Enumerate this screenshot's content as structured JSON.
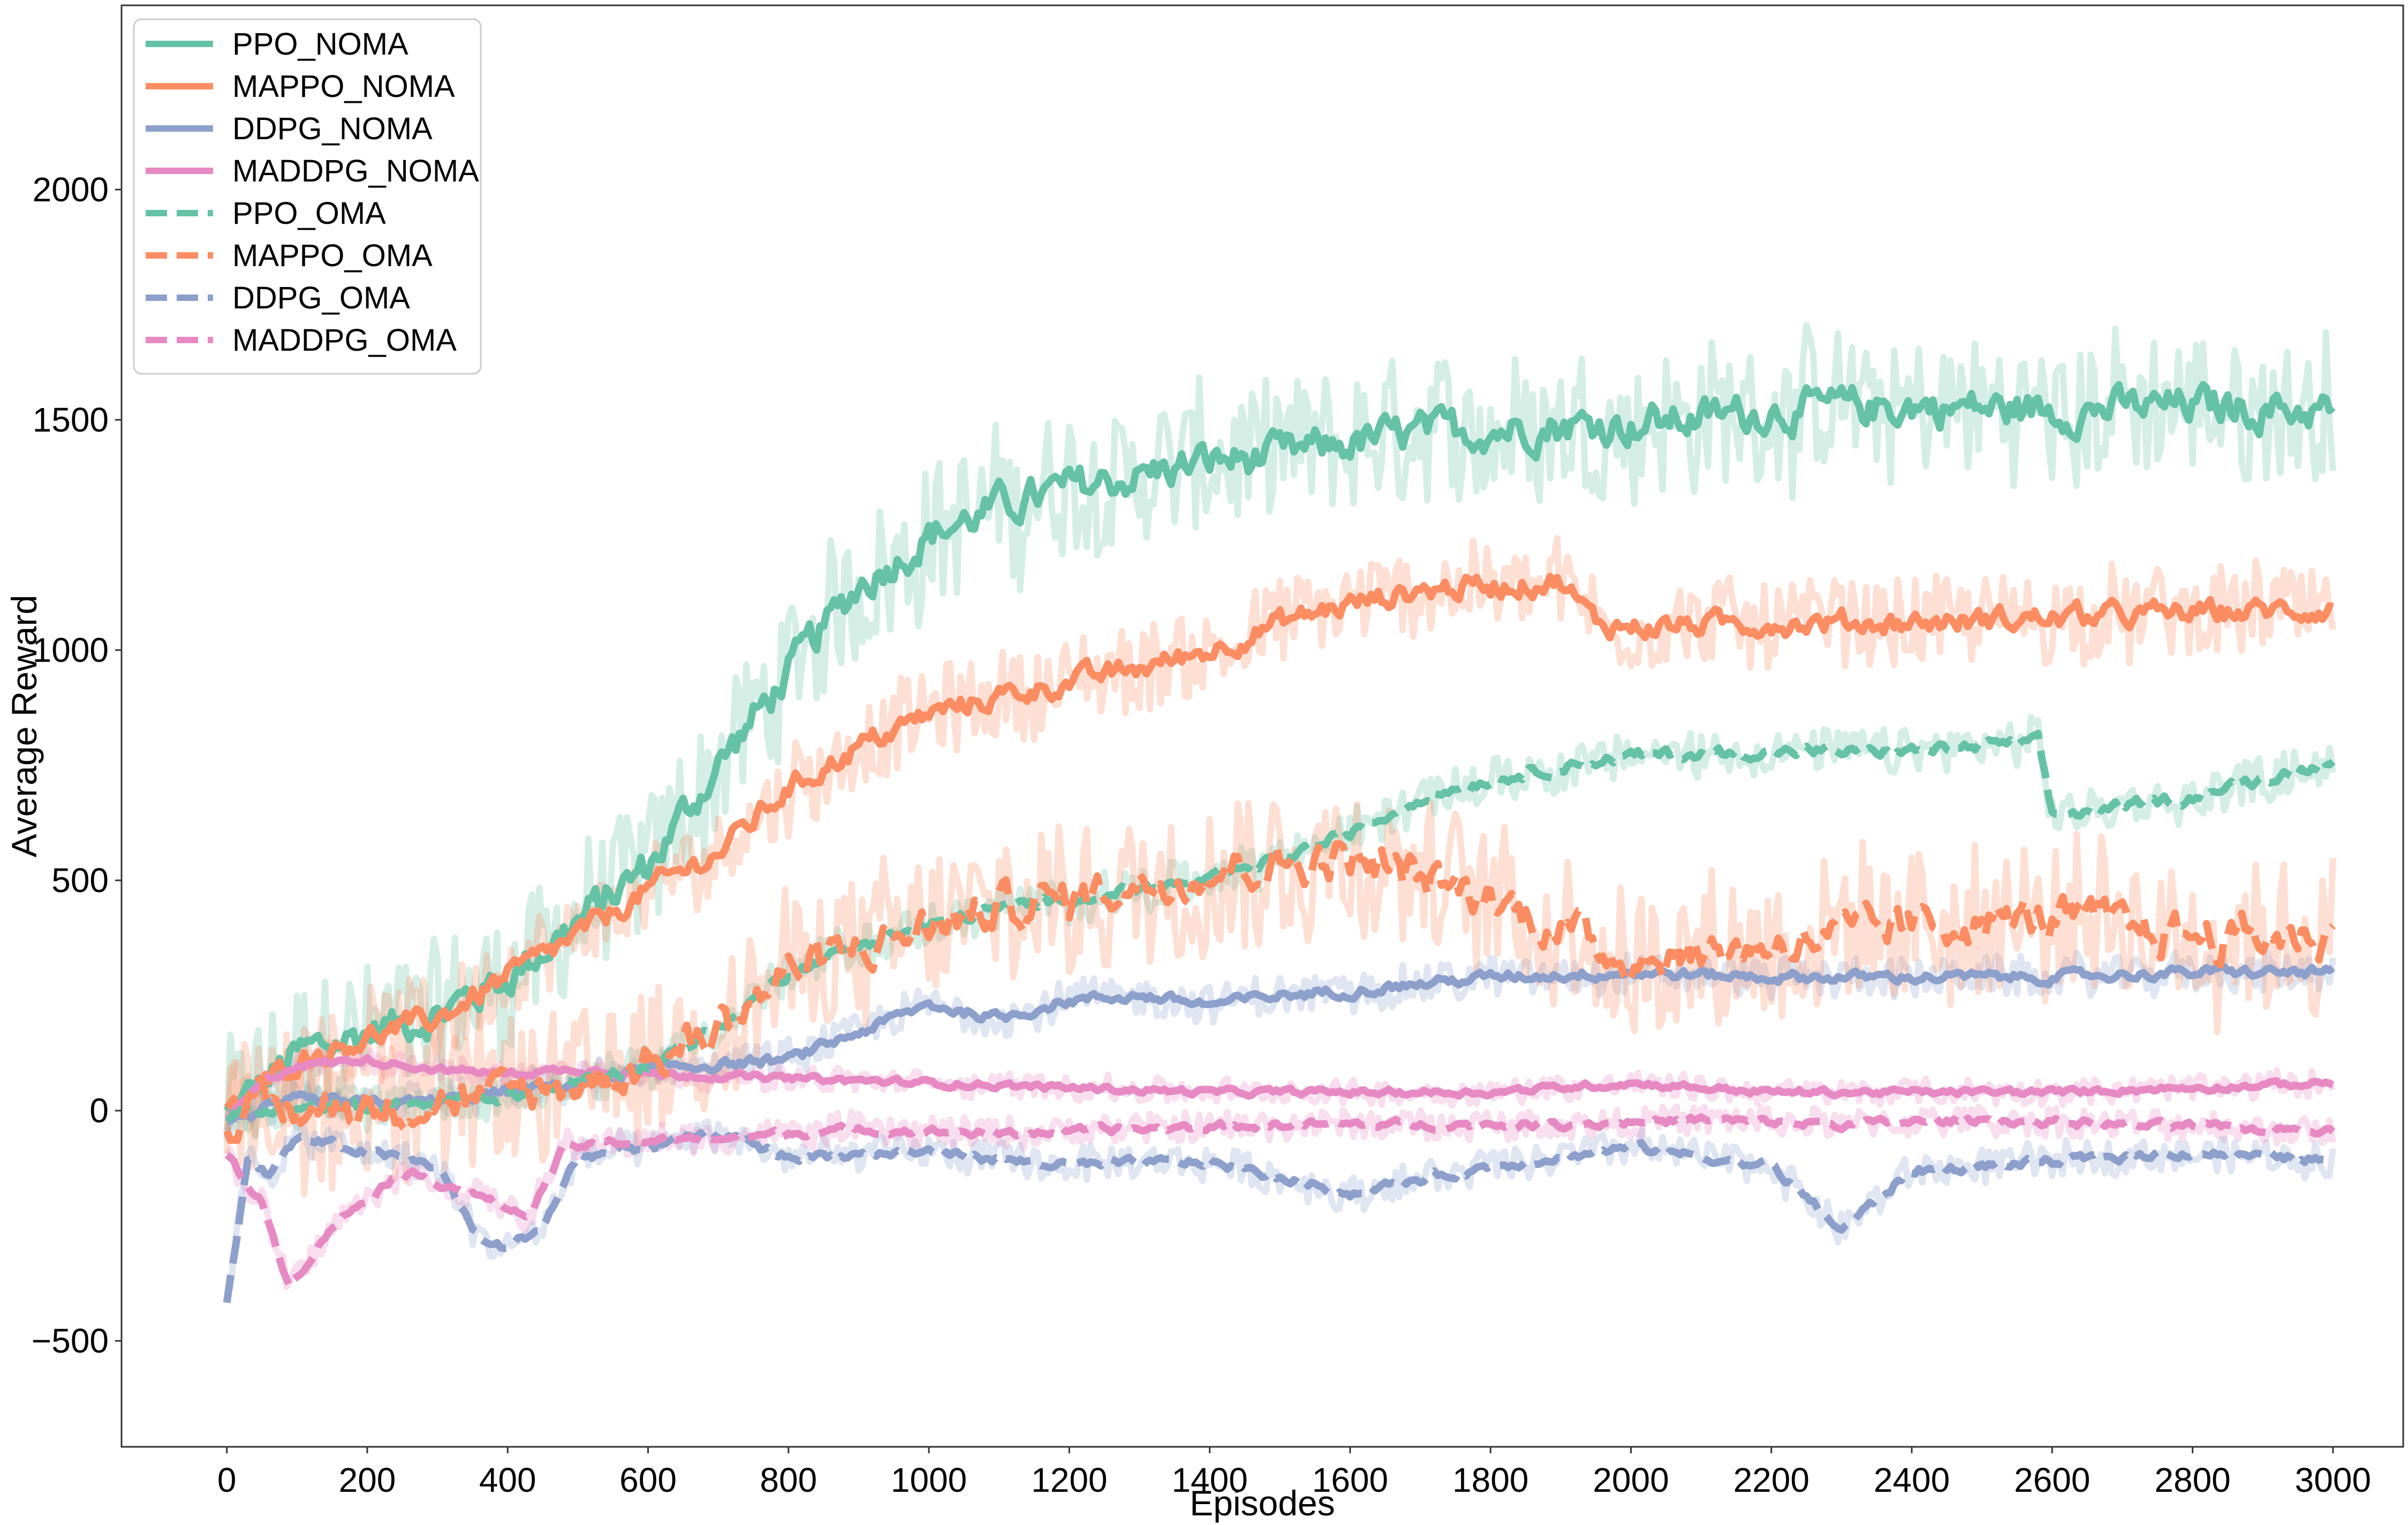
{
  "chart_data": {
    "type": "line",
    "title": "",
    "xlabel": "Episodes",
    "ylabel": "Average Reward",
    "xlim": [
      -150,
      3100
    ],
    "ylim": [
      -730,
      2400
    ],
    "x_ticks": [
      0,
      200,
      400,
      600,
      800,
      1000,
      1200,
      1400,
      1600,
      1800,
      2000,
      2200,
      2400,
      2600,
      2800,
      3000
    ],
    "y_ticks": [
      -500,
      0,
      500,
      1000,
      1500,
      2000
    ],
    "y_tick_labels": [
      "−500",
      "0",
      "500",
      "1000",
      "1500",
      "2000"
    ],
    "grid": false,
    "legend_position": "top-left",
    "colors": {
      "green": "#66c2a5",
      "orange": "#fc8d62",
      "blue": "#8da0cb",
      "pink": "#e78ac3"
    },
    "series": [
      {
        "name": "PPO_NOMA",
        "color": "#66c2a5",
        "dash": "solid",
        "noise": 150,
        "x": [
          0,
          100,
          200,
          300,
          400,
          500,
          600,
          700,
          800,
          900,
          1000,
          1100,
          1200,
          1300,
          1400,
          1500,
          1600,
          1700,
          1800,
          1900,
          2000,
          2200,
          2400,
          2600,
          2800,
          3000
        ],
        "y": [
          -10,
          120,
          170,
          210,
          290,
          410,
          530,
          750,
          950,
          1140,
          1250,
          1310,
          1350,
          1380,
          1410,
          1420,
          1450,
          1470,
          1480,
          1490,
          1490,
          1520,
          1530,
          1520,
          1530,
          1520
        ]
      },
      {
        "name": "MAPPO_NOMA",
        "color": "#fc8d62",
        "dash": "solid",
        "noise": 90,
        "x": [
          0,
          100,
          200,
          300,
          400,
          500,
          600,
          700,
          800,
          900,
          1000,
          1100,
          1200,
          1300,
          1400,
          1500,
          1600,
          1700,
          1800,
          1900,
          1950,
          2000,
          2200,
          2400,
          2600,
          2800,
          3000
        ],
        "y": [
          -10,
          110,
          160,
          200,
          290,
          380,
          480,
          560,
          700,
          790,
          860,
          900,
          930,
          960,
          1000,
          1060,
          1100,
          1130,
          1140,
          1150,
          1060,
          1050,
          1060,
          1060,
          1070,
          1080,
          1090
        ]
      },
      {
        "name": "DDPG_NOMA",
        "color": "#8da0cb",
        "dash": "solid",
        "noise": 40,
        "x": [
          0,
          100,
          200,
          300,
          400,
          500,
          600,
          700,
          800,
          900,
          1000,
          1100,
          1200,
          1300,
          1400,
          1500,
          1600,
          1800,
          2000,
          2200,
          2400,
          2600,
          2800,
          3000
        ],
        "y": [
          -20,
          20,
          15,
          20,
          40,
          60,
          90,
          100,
          110,
          170,
          230,
          200,
          240,
          250,
          230,
          250,
          260,
          290,
          300,
          290,
          290,
          290,
          300,
          300
        ]
      },
      {
        "name": "MADDPG_NOMA",
        "color": "#e78ac3",
        "dash": "solid",
        "noise": 25,
        "x": [
          0,
          50,
          100,
          200,
          300,
          400,
          500,
          600,
          800,
          1000,
          1200,
          1400,
          1600,
          1800,
          2000,
          2200,
          2400,
          2600,
          2800,
          3000
        ],
        "y": [
          -20,
          60,
          100,
          110,
          90,
          80,
          90,
          80,
          70,
          60,
          50,
          40,
          40,
          40,
          60,
          40,
          40,
          40,
          50,
          60
        ]
      },
      {
        "name": "PPO_OMA",
        "color": "#66c2a5",
        "dash": "dashed",
        "noise": 45,
        "x": [
          0,
          200,
          400,
          500,
          600,
          700,
          800,
          900,
          1000,
          1100,
          1200,
          1400,
          1600,
          1700,
          1800,
          2000,
          2200,
          2400,
          2580,
          2600,
          2800,
          3000
        ],
        "y": [
          -10,
          10,
          30,
          60,
          100,
          180,
          300,
          360,
          400,
          440,
          460,
          500,
          600,
          680,
          720,
          770,
          780,
          780,
          800,
          640,
          680,
          760
        ]
      },
      {
        "name": "MAPPO_OMA",
        "color": "#fc8d62",
        "dash": "dashed",
        "noise": 160,
        "x": [
          0,
          200,
          400,
          500,
          600,
          700,
          800,
          900,
          1000,
          1100,
          1200,
          1400,
          1600,
          1800,
          2000,
          2200,
          2400,
          2600,
          2800,
          3000
        ],
        "y": [
          -10,
          10,
          30,
          60,
          100,
          180,
          300,
          350,
          400,
          440,
          460,
          520,
          550,
          460,
          330,
          360,
          400,
          420,
          380,
          380
        ]
      },
      {
        "name": "DDPG_OMA",
        "color": "#8da0cb",
        "dash": "dashed",
        "noise": 35,
        "x": [
          0,
          30,
          60,
          100,
          200,
          300,
          360,
          400,
          450,
          500,
          600,
          700,
          800,
          1000,
          1200,
          1400,
          1600,
          1800,
          2000,
          2200,
          2300,
          2400,
          2600,
          2800,
          3000
        ],
        "y": [
          -420,
          -100,
          -140,
          -60,
          -90,
          -120,
          -280,
          -300,
          -250,
          -100,
          -80,
          -50,
          -100,
          -90,
          -120,
          -110,
          -180,
          -120,
          -80,
          -120,
          -260,
          -130,
          -110,
          -90,
          -110
        ]
      },
      {
        "name": "MADDPG_OMA",
        "color": "#e78ac3",
        "dash": "dashed",
        "noise": 30,
        "x": [
          0,
          50,
          90,
          150,
          250,
          350,
          430,
          480,
          550,
          700,
          900,
          1100,
          1300,
          1500,
          1700,
          1900,
          2100,
          2300,
          2500,
          2700,
          2900,
          3000
        ],
        "y": [
          -100,
          -200,
          -380,
          -250,
          -130,
          -180,
          -230,
          -80,
          -70,
          -60,
          -40,
          -50,
          -40,
          -30,
          -30,
          -30,
          -20,
          -30,
          -20,
          -30,
          -40,
          -40
        ]
      }
    ]
  }
}
